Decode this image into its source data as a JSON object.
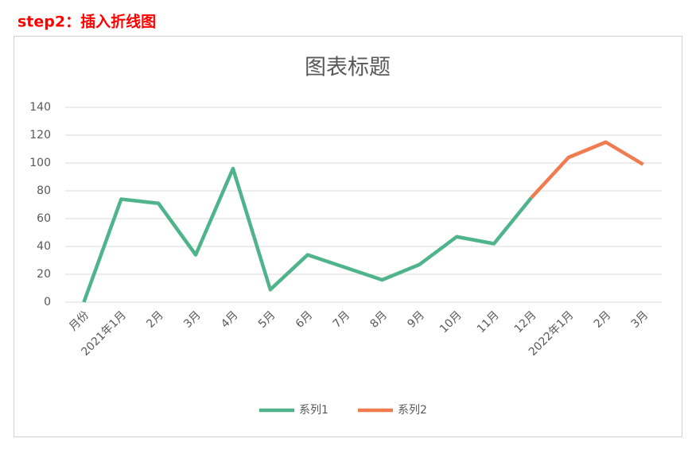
{
  "header": "step2：插入折线图",
  "chart_data": {
    "type": "line",
    "title": "图表标题",
    "categories": [
      "月份",
      "2021年1月",
      "2月",
      "3月",
      "4月",
      "5月",
      "6月",
      "7月",
      "8月",
      "9月",
      "10月",
      "11月",
      "12月",
      "2022年1月",
      "2月",
      "3月"
    ],
    "series": [
      {
        "name": "系列1",
        "color": "#4fb38b",
        "values": [
          0,
          74,
          71,
          34,
          96,
          9,
          34,
          25,
          16,
          27,
          47,
          42,
          75,
          null,
          null,
          null
        ]
      },
      {
        "name": "系列2",
        "color": "#f07b4f",
        "values": [
          null,
          null,
          null,
          null,
          null,
          null,
          null,
          null,
          null,
          null,
          null,
          null,
          75,
          104,
          115,
          99
        ]
      }
    ],
    "ylim": [
      0,
      140
    ],
    "yticks": [
      0,
      20,
      40,
      60,
      80,
      100,
      120,
      140
    ],
    "grid": true,
    "legend": "bottom"
  }
}
